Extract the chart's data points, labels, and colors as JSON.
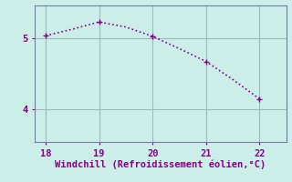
{
  "x": [
    18,
    18.5,
    19,
    19.5,
    20,
    20.5,
    21,
    21.5,
    22
  ],
  "y": [
    5.03,
    5.12,
    5.22,
    5.15,
    5.02,
    4.85,
    4.67,
    4.42,
    4.15
  ],
  "marker_x": [
    18,
    19,
    20,
    21,
    22
  ],
  "marker_y": [
    5.03,
    5.22,
    5.02,
    4.67,
    4.15
  ],
  "line_color": "#880088",
  "marker_color": "#880088",
  "bg_color": "#cceee8",
  "plot_bg_color": "#cceee8",
  "grid_color": "#99bbbb",
  "xlabel": "Windchill (Refroidissement éolien,°C)",
  "xlabel_color": "#880088",
  "tick_color": "#880088",
  "spine_color": "#7777aa",
  "xlim": [
    17.8,
    22.5
  ],
  "ylim": [
    3.55,
    5.45
  ],
  "yticks": [
    4,
    5
  ],
  "xticks": [
    18,
    19,
    20,
    21,
    22
  ],
  "xlabel_fontsize": 7.5,
  "tick_fontsize": 7.5
}
